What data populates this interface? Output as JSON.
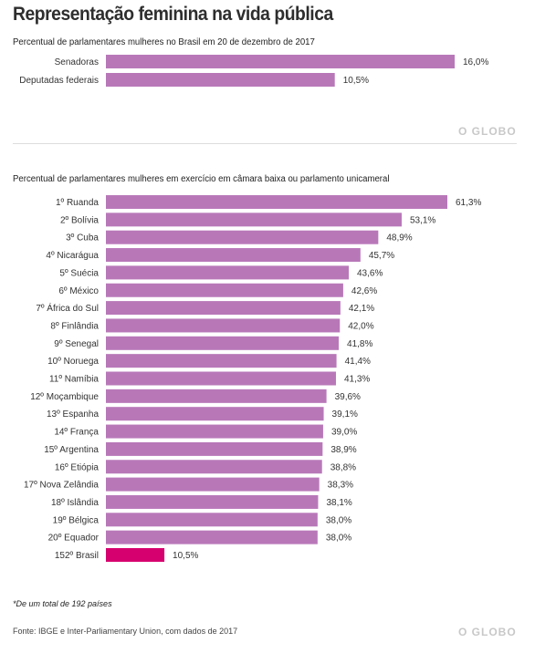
{
  "header": {
    "title": "Representação feminina na vida pública"
  },
  "brand": "O GLOBO",
  "footnote": "*De um total de 192 países",
  "source": "Fonte: IBGE e Inter-Parliamentary Union, com dados de 2017",
  "colors": {
    "bar": "#b878b8",
    "highlight": "#d6006e"
  },
  "chart_data": [
    {
      "type": "bar",
      "orientation": "horizontal",
      "subtitle": "Percentual de parlamentares mulheres no Brasil em 20 de dezembro de 2017",
      "categories": [
        "Senadoras",
        "Deputadas federais"
      ],
      "values": [
        16.0,
        10.5
      ],
      "value_labels": [
        "16,0%",
        "10,5%"
      ],
      "xlim": [
        0,
        16.0
      ],
      "grid": false
    },
    {
      "type": "bar",
      "orientation": "horizontal",
      "subtitle": "Percentual de parlamentares mulheres em exercício em câmara baixa ou parlamento unicameral",
      "categories": [
        "1º Ruanda",
        "2º Bolívia",
        "3º Cuba",
        "4º Nicarágua",
        "5º Suécia",
        "6º México",
        "7º África do Sul",
        "8º Finlândia",
        "9º Senegal",
        "10º Noruega",
        "11º Namíbia",
        "12º Moçambique",
        "13º Espanha",
        "14º França",
        "15º Argentina",
        "16º Etiópia",
        "17º Nova Zelândia",
        "18º Islândia",
        "19º Bélgica",
        "20º Equador",
        "152º Brasil"
      ],
      "values": [
        61.3,
        53.1,
        48.9,
        45.7,
        43.6,
        42.6,
        42.1,
        42.0,
        41.8,
        41.4,
        41.3,
        39.6,
        39.1,
        39.0,
        38.9,
        38.8,
        38.3,
        38.1,
        38.0,
        38.0,
        10.5
      ],
      "value_labels": [
        "61,3%",
        "53,1%",
        "48,9%",
        "45,7%",
        "43,6%",
        "42,6%",
        "42,1%",
        "42,0%",
        "41,8%",
        "41,4%",
        "41,3%",
        "39,6%",
        "39,1%",
        "39,0%",
        "38,9%",
        "38,8%",
        "38,3%",
        "38,1%",
        "38,0%",
        "38,0%",
        "10,5%"
      ],
      "highlight": "152º Brasil",
      "xlim": [
        0,
        61.3
      ],
      "grid": false
    }
  ]
}
